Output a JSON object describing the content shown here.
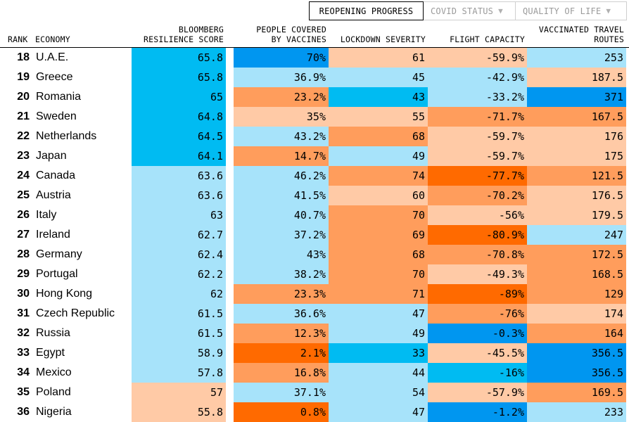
{
  "tabs": [
    {
      "label": "REOPENING PROGRESS",
      "active": true
    },
    {
      "label": "COVID STATUS",
      "active": false,
      "caret": "▼"
    },
    {
      "label": "QUALITY OF LIFE",
      "active": false,
      "caret": "▼"
    }
  ],
  "headers": {
    "rank": "RANK",
    "economy": "ECONOMY",
    "score_l1": "BLOOMBERG",
    "score_l2": "RESILIENCE SCORE",
    "vacc_l1": "PEOPLE COVERED",
    "vacc_l2": "BY VACCINES",
    "lockdown": "LOCKDOWN SEVERITY",
    "flight": "FLIGHT CAPACITY",
    "routes_l1": "VACCINATED TRAVEL",
    "routes_l2": "ROUTES"
  },
  "colors": {
    "dark_blue": "#0096f0",
    "mid_blue": "#00bbf2",
    "light_blue": "#a7e3fa",
    "light_orange": "#ffcaa6",
    "mid_orange": "#ff9d5c",
    "dark_orange": "#ff6a00"
  },
  "rows": [
    {
      "rank": "18",
      "economy": "U.A.E.",
      "score": "65.8",
      "vaccines": "70%",
      "lockdown": "61",
      "flight": "-59.9%",
      "routes": "253",
      "colors": [
        "mid_blue",
        "dark_blue",
        "light_orange",
        "light_orange",
        "light_blue"
      ]
    },
    {
      "rank": "19",
      "economy": "Greece",
      "score": "65.8",
      "vaccines": "36.9%",
      "lockdown": "45",
      "flight": "-42.9%",
      "routes": "187.5",
      "colors": [
        "mid_blue",
        "light_blue",
        "light_blue",
        "light_blue",
        "light_orange"
      ]
    },
    {
      "rank": "20",
      "economy": "Romania",
      "score": "65",
      "vaccines": "23.2%",
      "lockdown": "43",
      "flight": "-33.2%",
      "routes": "371",
      "colors": [
        "mid_blue",
        "mid_orange",
        "mid_blue",
        "light_blue",
        "dark_blue"
      ]
    },
    {
      "rank": "21",
      "economy": "Sweden",
      "score": "64.8",
      "vaccines": "35%",
      "lockdown": "55",
      "flight": "-71.7%",
      "routes": "167.5",
      "colors": [
        "mid_blue",
        "light_orange",
        "light_orange",
        "mid_orange",
        "mid_orange"
      ]
    },
    {
      "rank": "22",
      "economy": "Netherlands",
      "score": "64.5",
      "vaccines": "43.2%",
      "lockdown": "68",
      "flight": "-59.7%",
      "routes": "176",
      "colors": [
        "mid_blue",
        "light_blue",
        "mid_orange",
        "light_orange",
        "light_orange"
      ]
    },
    {
      "rank": "23",
      "economy": "Japan",
      "score": "64.1",
      "vaccines": "14.7%",
      "lockdown": "49",
      "flight": "-59.7%",
      "routes": "175",
      "colors": [
        "mid_blue",
        "mid_orange",
        "light_blue",
        "light_orange",
        "light_orange"
      ]
    },
    {
      "rank": "24",
      "economy": "Canada",
      "score": "63.6",
      "vaccines": "46.2%",
      "lockdown": "74",
      "flight": "-77.7%",
      "routes": "121.5",
      "colors": [
        "light_blue",
        "light_blue",
        "mid_orange",
        "dark_orange",
        "mid_orange"
      ]
    },
    {
      "rank": "25",
      "economy": "Austria",
      "score": "63.6",
      "vaccines": "41.5%",
      "lockdown": "60",
      "flight": "-70.2%",
      "routes": "176.5",
      "colors": [
        "light_blue",
        "light_blue",
        "light_orange",
        "mid_orange",
        "light_orange"
      ]
    },
    {
      "rank": "26",
      "economy": "Italy",
      "score": "63",
      "vaccines": "40.7%",
      "lockdown": "70",
      "flight": "-56%",
      "routes": "179.5",
      "colors": [
        "light_blue",
        "light_blue",
        "mid_orange",
        "light_orange",
        "light_orange"
      ]
    },
    {
      "rank": "27",
      "economy": "Ireland",
      "score": "62.7",
      "vaccines": "37.2%",
      "lockdown": "69",
      "flight": "-80.9%",
      "routes": "247",
      "colors": [
        "light_blue",
        "light_blue",
        "mid_orange",
        "dark_orange",
        "light_blue"
      ]
    },
    {
      "rank": "28",
      "economy": "Germany",
      "score": "62.4",
      "vaccines": "43%",
      "lockdown": "68",
      "flight": "-70.8%",
      "routes": "172.5",
      "colors": [
        "light_blue",
        "light_blue",
        "mid_orange",
        "mid_orange",
        "mid_orange"
      ]
    },
    {
      "rank": "29",
      "economy": "Portugal",
      "score": "62.2",
      "vaccines": "38.2%",
      "lockdown": "70",
      "flight": "-49.3%",
      "routes": "168.5",
      "colors": [
        "light_blue",
        "light_blue",
        "mid_orange",
        "light_orange",
        "mid_orange"
      ]
    },
    {
      "rank": "30",
      "economy": "Hong Kong",
      "score": "62",
      "vaccines": "23.3%",
      "lockdown": "71",
      "flight": "-89%",
      "routes": "129",
      "colors": [
        "light_blue",
        "mid_orange",
        "mid_orange",
        "dark_orange",
        "mid_orange"
      ]
    },
    {
      "rank": "31",
      "economy": "Czech Republic",
      "score": "61.5",
      "vaccines": "36.6%",
      "lockdown": "47",
      "flight": "-76%",
      "routes": "174",
      "colors": [
        "light_blue",
        "light_blue",
        "light_blue",
        "mid_orange",
        "light_orange"
      ]
    },
    {
      "rank": "32",
      "economy": "Russia",
      "score": "61.5",
      "vaccines": "12.3%",
      "lockdown": "49",
      "flight": "-0.3%",
      "routes": "164",
      "colors": [
        "light_blue",
        "mid_orange",
        "light_blue",
        "dark_blue",
        "mid_orange"
      ]
    },
    {
      "rank": "33",
      "economy": "Egypt",
      "score": "58.9",
      "vaccines": "2.1%",
      "lockdown": "33",
      "flight": "-45.5%",
      "routes": "356.5",
      "colors": [
        "light_blue",
        "dark_orange",
        "mid_blue",
        "light_orange",
        "dark_blue"
      ]
    },
    {
      "rank": "34",
      "economy": "Mexico",
      "score": "57.8",
      "vaccines": "16.8%",
      "lockdown": "44",
      "flight": "-16%",
      "routes": "356.5",
      "colors": [
        "light_blue",
        "mid_orange",
        "light_blue",
        "mid_blue",
        "dark_blue"
      ]
    },
    {
      "rank": "35",
      "economy": "Poland",
      "score": "57",
      "vaccines": "37.1%",
      "lockdown": "54",
      "flight": "-57.9%",
      "routes": "169.5",
      "colors": [
        "light_orange",
        "light_blue",
        "light_blue",
        "light_orange",
        "mid_orange"
      ]
    },
    {
      "rank": "36",
      "economy": "Nigeria",
      "score": "55.8",
      "vaccines": "0.8%",
      "lockdown": "47",
      "flight": "-1.2%",
      "routes": "233",
      "colors": [
        "light_orange",
        "dark_orange",
        "light_blue",
        "dark_blue",
        "light_blue"
      ]
    }
  ]
}
